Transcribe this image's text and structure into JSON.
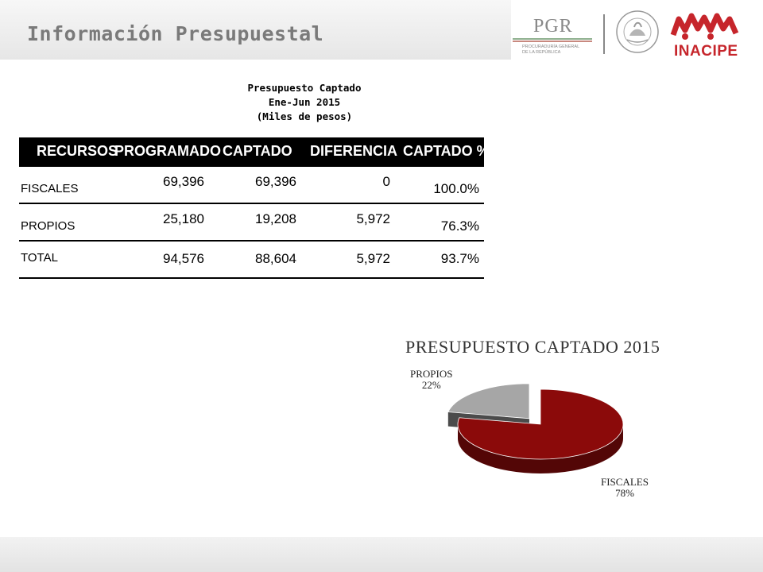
{
  "header": {
    "title": "Información Presupuestal",
    "logo_pgr": "PGR",
    "logo_pgr_sub": [
      "PROCURADURÍA GENERAL",
      "DE LA REPÚBLICA"
    ],
    "seal_text": "ESTADOS UNIDOS MEXICANOS",
    "logo_inacipe": "INACIPE"
  },
  "table": {
    "title_line1": "Presupuesto Captado",
    "title_line2": "Ene-Jun 2015",
    "title_line3": "(Miles de pesos)",
    "headers": [
      "RECURSOS",
      "PROGRAMADO",
      "CAPTADO",
      "DIFERENCIA",
      "CAPTADO %"
    ],
    "rows": [
      {
        "label": "FISCALES",
        "programado": "69,396",
        "captado": "69,396",
        "diferencia": "0",
        "pct": "100.0%"
      },
      {
        "label": "PROPIOS",
        "programado": "25,180",
        "captado": "19,208",
        "diferencia": "5,972",
        "pct": "76.3%"
      },
      {
        "label": "TOTAL",
        "programado": "94,576",
        "captado": "88,604",
        "diferencia": "5,972",
        "pct": "93.7%"
      }
    ]
  },
  "chart_data": {
    "type": "pie",
    "title": "PRESUPUESTO CAPTADO 2015",
    "categories": [
      "FISCALES",
      "PROPIOS"
    ],
    "values": [
      78,
      22
    ],
    "labels": [
      "78%",
      "22%"
    ],
    "colors": [
      "#8b0a0a",
      "#a6a6a6"
    ]
  }
}
